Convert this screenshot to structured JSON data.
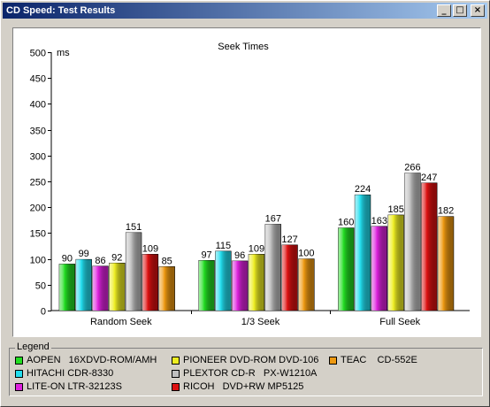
{
  "window": {
    "title": "CD Speed: Test Results",
    "minimize_glyph": "_",
    "maximize_glyph": "□",
    "close_glyph": "×"
  },
  "chart_data": {
    "type": "bar",
    "title": "Seek Times",
    "ylabel": "ms",
    "xlabel": "",
    "ylim": [
      0,
      500
    ],
    "yticks": [
      0,
      50,
      100,
      150,
      200,
      250,
      300,
      350,
      400,
      450,
      500
    ],
    "categories": [
      "Random Seek",
      "1/3 Seek",
      "Full Seek"
    ],
    "series": [
      {
        "name": "AOPEN   16XDVD-ROM/AMH",
        "color": "#22dd22",
        "values": [
          90,
          97,
          160
        ]
      },
      {
        "name": "HITACHI CDR-8330",
        "color": "#22ddee",
        "values": [
          99,
          115,
          224
        ]
      },
      {
        "name": "LITE-ON LTR-32123S",
        "color": "#dd22dd",
        "values": [
          86,
          96,
          163
        ]
      },
      {
        "name": "PIONEER DVD-ROM DVD-106",
        "color": "#eeee22",
        "values": [
          92,
          109,
          185
        ]
      },
      {
        "name": "PLEXTOR CD-R   PX-W1210A",
        "color": "#c0c0c0",
        "values": [
          151,
          167,
          266
        ]
      },
      {
        "name": "RICOH   DVD+RW MP5125",
        "color": "#dd1111",
        "values": [
          109,
          127,
          247
        ]
      },
      {
        "name": "TEAC    CD-552E",
        "color": "#ee9911",
        "values": [
          85,
          100,
          182
        ]
      }
    ],
    "grid": false,
    "legend_placement": "bottom"
  },
  "legend": {
    "title": "Legend"
  }
}
